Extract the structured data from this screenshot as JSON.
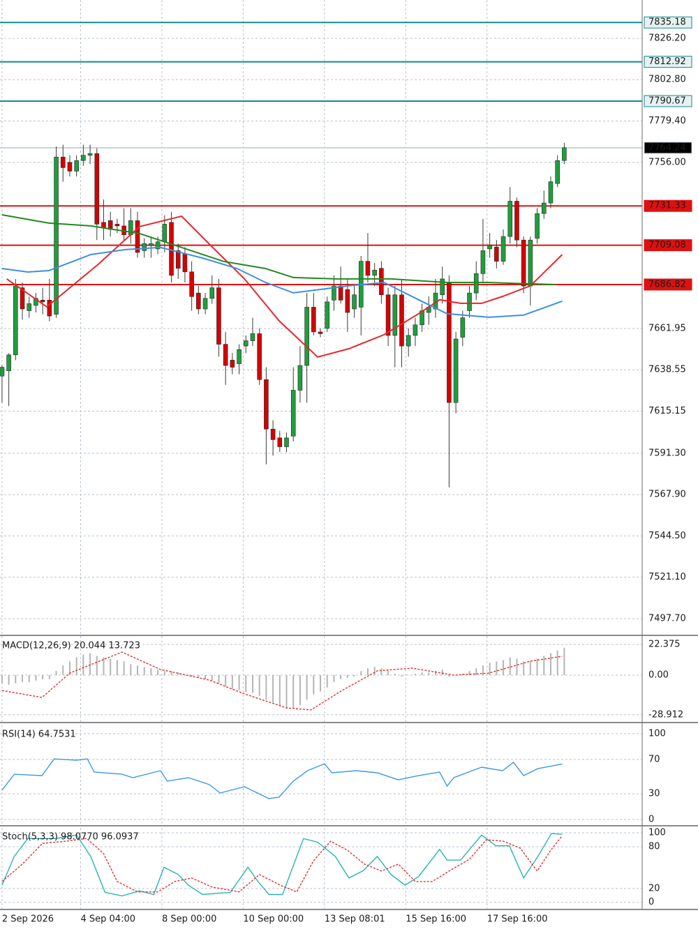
{
  "chart_data": [
    {
      "type": "candlestick",
      "xlim": [
        -0.3,
        94.5
      ],
      "xticks": [
        {
          "value": 0,
          "label": "2 Sep 2026"
        },
        {
          "value": 11.6,
          "label": "4 Sep 04:00"
        },
        {
          "value": 23.6,
          "label": "8 Sep 00:00"
        },
        {
          "value": 35.6,
          "label": "10 Sep 00:00"
        },
        {
          "value": 47.6,
          "label": "13 Sep 08:01"
        },
        {
          "value": 59.6,
          "label": "15 Sep 16:00"
        },
        {
          "value": 71.6,
          "label": "17 Sep 16:00"
        }
      ],
      "ylim": [
        7488.6,
        7847.9
      ],
      "yticks": [
        {
          "value": 7826.2,
          "label": "7826.20"
        },
        {
          "value": 7802.8,
          "label": "7802.80"
        },
        {
          "value": 7779.4,
          "label": "7779.40"
        },
        {
          "value": 7756,
          "label": "7756.00"
        },
        7661.95,
        7638.55,
        7615.15,
        {
          "value": 7591.3,
          "label": "7591.30"
        },
        {
          "value": 7567.9,
          "label": "7567.90"
        },
        {
          "value": 7544.5,
          "label": "7544.50"
        },
        {
          "value": 7521.1,
          "label": "7521.10"
        },
        {
          "value": 7497.7,
          "label": "7497.70"
        }
      ],
      "grid": true,
      "color_up": "#1f9e3c",
      "color_down": "#d40000",
      "open": [
        7635,
        7638,
        7647,
        7685,
        7672,
        7675,
        7678,
        7678,
        7670,
        7759,
        7756,
        7751,
        7757,
        7760,
        7761,
        7722,
        7723,
        7721,
        7720,
        7715,
        7723,
        7706,
        7709,
        7707,
        7711,
        7722,
        7706,
        7704,
        7694,
        7682,
        7673,
        7679,
        7685,
        7653,
        7644,
        7642,
        7652,
        7655,
        7659,
        7633,
        7605,
        7600,
        7595,
        7601,
        7627,
        7641,
        7674,
        7660,
        7662,
        7678,
        7686,
        7684,
        7673,
        7674,
        7700,
        7692,
        7696,
        7681,
        7658,
        7681,
        7652,
        7658,
        7664,
        7671,
        7673,
        7681,
        7688,
        7620,
        7657,
        7672,
        7682,
        7693,
        7707,
        7708,
        7700,
        7714,
        7734,
        7712,
        7686,
        7713,
        7727,
        7733,
        7744,
        7757
      ],
      "high": [
        7641,
        7648,
        7690,
        7688,
        7680,
        7682,
        7685,
        7690,
        7765,
        7766,
        7760,
        7760,
        7766,
        7766,
        7764,
        7735,
        7728,
        7724,
        7730,
        7730,
        7728,
        7713,
        7714,
        7714,
        7726,
        7728,
        7710,
        7708,
        7700,
        7686,
        7682,
        7692,
        7690,
        7660,
        7648,
        7653,
        7658,
        7668,
        7662,
        7640,
        7610,
        7604,
        7603,
        7640,
        7652,
        7682,
        7682,
        7662,
        7680,
        7692,
        7697,
        7690,
        7686,
        7703,
        7716,
        7699,
        7700,
        7685,
        7686,
        7690,
        7662,
        7668,
        7676,
        7680,
        7690,
        7697,
        7692,
        7660,
        7672,
        7686,
        7700,
        7724,
        7716,
        7712,
        7718,
        7742,
        7736,
        7714,
        7714,
        7730,
        7740,
        7748,
        7760,
        7767
      ],
      "low": [
        7620,
        7618,
        7644,
        7667,
        7668,
        7671,
        7670,
        7666,
        7668,
        7745,
        7748,
        7748,
        7754,
        7755,
        7712,
        7712,
        7714,
        7716,
        7712,
        7710,
        7702,
        7702,
        7702,
        7704,
        7705,
        7688,
        7690,
        7688,
        7672,
        7670,
        7670,
        7676,
        7646,
        7630,
        7636,
        7636,
        7648,
        7652,
        7630,
        7585,
        7590,
        7592,
        7592,
        7598,
        7620,
        7620,
        7658,
        7657,
        7660,
        7672,
        7676,
        7660,
        7668,
        7658,
        7688,
        7686,
        7676,
        7652,
        7640,
        7640,
        7646,
        7652,
        7660,
        7664,
        7668,
        7676,
        7572,
        7614,
        7652,
        7668,
        7678,
        7688,
        7702,
        7696,
        7698,
        7710,
        7708,
        7682,
        7675,
        7710,
        7724,
        7730,
        7742,
        7755
      ],
      "close": [
        7640,
        7647,
        7686,
        7673,
        7676,
        7679,
        7677,
        7669,
        7759,
        7753,
        7751,
        7757,
        7760,
        7761,
        7721,
        7719,
        7718,
        7720,
        7715,
        7723,
        7705,
        7710,
        7710,
        7711,
        7721,
        7692,
        7696,
        7694,
        7680,
        7673,
        7679,
        7685,
        7653,
        7641,
        7640,
        7650,
        7655,
        7659,
        7633,
        7605,
        7599,
        7595,
        7600,
        7627,
        7641,
        7674,
        7660,
        7659,
        7677,
        7686,
        7678,
        7671,
        7681,
        7700,
        7692,
        7695,
        7681,
        7658,
        7681,
        7652,
        7658,
        7664,
        7672,
        7674,
        7682,
        7690,
        7620,
        7656,
        7668,
        7682,
        7693,
        7706,
        7709,
        7700,
        7714,
        7734,
        7712,
        7686,
        7712,
        7727,
        7733,
        7745,
        7757,
        7764.24
      ],
      "ma": [
        {
          "color": "#e8262b",
          "x": [
            0.7,
            6.6,
            14.1,
            20.3,
            26.5,
            30.6,
            35.8,
            40.9,
            46.6,
            51.2,
            56.4,
            61.5,
            64.6,
            67.7,
            70.8,
            73.9,
            78,
            82.7
          ],
          "values": [
            7690,
            7674.2,
            7697.9,
            7719.6,
            7725.5,
            7709.7,
            7690,
            7666.3,
            7645.8,
            7650.5,
            7658.4,
            7670.3,
            7678.2,
            7676.2,
            7676.2,
            7680.1,
            7686.1,
            7703.8
          ]
        },
        {
          "color": "#3d8fe0",
          "x": [
            0,
            3.8,
            6.9,
            13.1,
            18.2,
            23.4,
            29.6,
            34.7,
            38.9,
            43,
            47.1,
            51.2,
            56.4,
            61.5,
            65.7,
            71.9,
            77,
            82.7
          ],
          "values": [
            7695.9,
            7693.9,
            7694.7,
            7703.8,
            7706.6,
            7707.8,
            7701.8,
            7695.9,
            7688,
            7682.1,
            7684.1,
            7686.1,
            7688,
            7678.2,
            7670.3,
            7668.3,
            7669.5,
            7677.4
          ]
        },
        {
          "color": "#1f8a1f",
          "x": [
            0,
            6.9,
            13.1,
            20.3,
            26.5,
            32.7,
            38.9,
            43,
            49.2,
            57.4,
            65.7,
            71.9,
            78,
            81.6
          ],
          "values": [
            7726.3,
            7721.6,
            7720,
            7715.7,
            7707.8,
            7699.9,
            7695.9,
            7690.8,
            7690,
            7690,
            7688,
            7688,
            7687.2,
            7686.8
          ]
        }
      ],
      "levels": [
        {
          "value": 7835.18,
          "color": "#138a8a",
          "label_fill": "#e6f2f2",
          "label_text": "#003a3a"
        },
        {
          "value": 7812.92,
          "color": "#138a8a",
          "label_fill": "#e6f2f2",
          "label_text": "#003a3a"
        },
        {
          "value": 7790.67,
          "color": "#138a8a",
          "label_fill": "#e6f2f2",
          "label_text": "#003a3a"
        },
        {
          "value": 7764.24,
          "color": "#c8d2dc",
          "label_fill": "#000000",
          "label_text": "#ffffff"
        },
        {
          "value": 7731.33,
          "color": "#e01010",
          "label_fill": "#e01010",
          "label_text": "#ffffff"
        },
        {
          "value": 7709.08,
          "color": "#e01010",
          "label_fill": "#e01010",
          "label_text": "#ffffff"
        },
        {
          "value": 7686.82,
          "color": "#e01010",
          "label_fill": "#e01010",
          "label_text": "#ffffff"
        }
      ]
    },
    {
      "type": "macd",
      "title": "MACD(12,26,9) 20.044 13.723",
      "xlim": [
        -0.3,
        94.5
      ],
      "ylim": [
        -34.1,
        28.5
      ],
      "yticks": [
        22.375,
        {
          "value": 0,
          "label": "0.00"
        },
        -28.912
      ],
      "grid": true,
      "series": [
        {
          "type": "bar",
          "color": "#b4b4b4",
          "values": [
            -6,
            -7,
            -6,
            -5,
            -5,
            -4,
            -3,
            -3,
            3,
            7,
            10,
            13,
            15,
            16,
            14,
            13,
            12,
            11,
            10,
            8,
            7,
            6,
            5,
            4,
            3,
            3,
            2,
            0,
            -1,
            -2,
            -3,
            -4,
            -6,
            -8,
            -10,
            -11,
            -12,
            -13,
            -15,
            -18,
            -20,
            -22,
            -24,
            -24,
            -22,
            -18,
            -14,
            -12,
            -9,
            -5,
            -3,
            -2,
            -1,
            3,
            5,
            6,
            5,
            3,
            1,
            -1,
            0,
            1,
            2,
            2,
            3,
            4,
            -1,
            0,
            1,
            3,
            5,
            7,
            9,
            10,
            11,
            13,
            12,
            10,
            10,
            12,
            14,
            16,
            18,
            20.044
          ]
        },
        {
          "type": "line",
          "dashed": true,
          "color": "#e03030",
          "x": [
            0,
            5.9,
            10,
            17.7,
            23.4,
            30.6,
            35.8,
            42,
            45.6,
            50.2,
            55.4,
            60.5,
            66.7,
            71.9,
            78,
            82.7
          ],
          "values": [
            -11.2,
            -16.3,
            1.5,
            16.8,
            4.1,
            -3.6,
            -13.7,
            -23.9,
            -25.4,
            -11.2,
            3.1,
            5.1,
            0,
            1.5,
            10.2,
            13.723
          ]
        }
      ]
    },
    {
      "type": "line",
      "title": "RSI(14) 64.7531",
      "xlim": [
        -0.3,
        94.5
      ],
      "ylim": [
        -6.5,
        109.8
      ],
      "yticks": [
        100,
        70,
        30,
        0
      ],
      "grid": true,
      "series": [
        {
          "color": "#3a9ae8",
          "x": [
            0,
            1.8,
            5.9,
            7.7,
            11,
            12.6,
            13.6,
            17.7,
            19.3,
            23.4,
            24.4,
            27.5,
            30.6,
            32.2,
            35.8,
            39.4,
            40.9,
            43,
            45.1,
            47.6,
            48.7,
            52.3,
            55.4,
            58.5,
            61.5,
            64.6,
            65.7,
            66.7,
            70.8,
            73.9,
            75.5,
            77,
            79.1,
            82.7
          ],
          "values": [
            34.1,
            52.8,
            51.2,
            70.7,
            69.1,
            70.7,
            55.3,
            52.8,
            48.8,
            56.9,
            44.7,
            48.8,
            40.7,
            30.9,
            38.2,
            24.4,
            26,
            44.7,
            56.9,
            65,
            54.5,
            56.9,
            54.5,
            46.3,
            51.2,
            55.3,
            39,
            48.8,
            61,
            56.9,
            66.7,
            51.2,
            59.3,
            64.7531
          ]
        }
      ]
    },
    {
      "type": "line",
      "title": "Stoch(5,3,3) 98.0770 96.0937",
      "xlim": [
        -0.3,
        94.5
      ],
      "ylim": [
        -9.3,
        107.2
      ],
      "yticks": [
        100,
        80,
        20,
        0
      ],
      "grid": true,
      "series": [
        {
          "color": "#2ab3b3",
          "x": [
            0,
            1.8,
            3.8,
            7.9,
            11,
            13.1,
            15.2,
            17.7,
            20.3,
            22.4,
            23.9,
            26,
            27.5,
            29.6,
            33.7,
            36.3,
            37.8,
            39.4,
            41.4,
            44.5,
            46.6,
            49.2,
            51.2,
            53.3,
            55.4,
            57.4,
            59.5,
            61.5,
            64.6,
            65.7,
            67.7,
            70.8,
            72.9,
            74.9,
            77,
            79.1,
            81.1,
            82.7
          ],
          "values": [
            24.7,
            66,
            91.8,
            91.8,
            96.9,
            66,
            14.4,
            9.3,
            16.5,
            11.3,
            50.5,
            40.2,
            24.7,
            11.3,
            14.4,
            50.5,
            29.9,
            11.3,
            11.3,
            91.8,
            86.6,
            66,
            35.1,
            45.4,
            66,
            40.2,
            24.7,
            37.1,
            76.3,
            60.8,
            60.8,
            96.9,
            81.4,
            81.4,
            35.1,
            66,
            99,
            98.077
          ]
        },
        {
          "dashed": true,
          "color": "#e03030",
          "x": [
            0,
            3,
            6,
            9.5,
            12.5,
            15,
            17,
            20,
            23,
            25.5,
            28,
            31,
            35,
            38,
            41,
            43.5,
            46,
            48.5,
            51,
            53.5,
            56,
            58.5,
            61,
            63.5,
            66,
            69,
            71.5,
            74,
            76.5,
            79,
            81,
            82.7
          ],
          "values": [
            30,
            55,
            85,
            88,
            92,
            70,
            30,
            15,
            15,
            30,
            35,
            22,
            15,
            40,
            25,
            15,
            60,
            88,
            75,
            55,
            45,
            55,
            30,
            30,
            45,
            62,
            90,
            88,
            78,
            45,
            75,
            96.0937
          ]
        }
      ]
    }
  ]
}
